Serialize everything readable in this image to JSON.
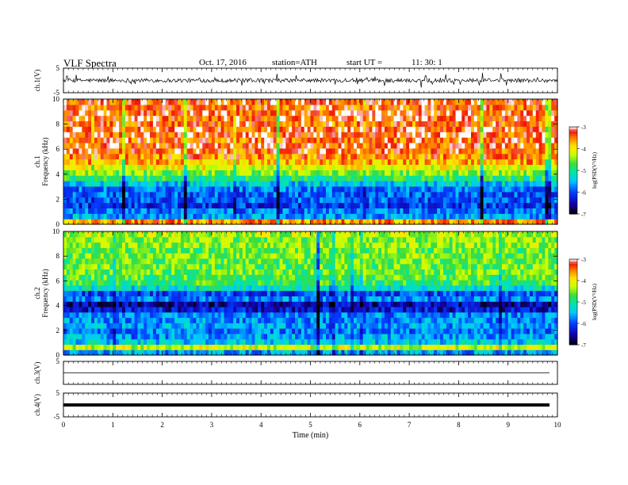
{
  "header": {
    "title": "VLF  Spectra",
    "date": "Oct. 17, 2016",
    "station": "station=ATH",
    "start_label": "start  UT  =",
    "start_time": "11: 30: 1"
  },
  "chart_data": {
    "type": "heatmap",
    "xlabel": "Time  (min)",
    "xlim": [
      0,
      10
    ],
    "xticks": [
      "0",
      "1",
      "2",
      "3",
      "4",
      "5",
      "6",
      "7",
      "8",
      "9",
      "10"
    ],
    "panels": [
      {
        "id": "ch1_waveform",
        "type": "line",
        "ylabel": "ch.1(V)",
        "ylim": [
          -5,
          5
        ],
        "yticks": [
          "5",
          "-5"
        ],
        "level": 0
      },
      {
        "id": "ch1_spectrogram",
        "type": "heatmap",
        "ylabel_top": "ch.1",
        "ylabel": "Frequency (kHz)",
        "ylim": [
          0,
          10
        ],
        "yticks": [
          "0",
          "2",
          "4",
          "6",
          "8",
          "10"
        ],
        "colorbar": {
          "label": "log(PSD(V²/Hz)",
          "range": [
            -7,
            -3
          ],
          "ticks": [
            "-3",
            "-4",
            "-5",
            "-6",
            "-7"
          ]
        },
        "profile": [
          -3.6,
          -5.6,
          -5.8,
          -6.1,
          -5.9,
          -5.9,
          -5.8,
          -5.4,
          -4.9,
          -4.5,
          -4.1,
          -3.7,
          -3.5,
          -3.4,
          -3.3,
          -3.4,
          -3.3,
          -3.3,
          -3.4,
          -3.3,
          -3.3,
          -3.4,
          -3.3
        ]
      },
      {
        "id": "ch2_spectrogram",
        "type": "heatmap",
        "ylabel_top": "ch.2",
        "ylabel": "Frequency (kHz)",
        "ylim": [
          0,
          10
        ],
        "yticks": [
          "0",
          "2",
          "4",
          "6",
          "8",
          "10"
        ],
        "colorbar": {
          "label": "log(PSD(V²/Hz)",
          "range": [
            -7,
            -3
          ],
          "ticks": [
            "-3",
            "-4",
            "-5",
            "-6",
            "-7"
          ]
        },
        "profile": [
          -5.6,
          -4.2,
          -5.4,
          -5.6,
          -5.8,
          -5.6,
          -5.7,
          -5.7,
          -6.3,
          -6.5,
          -5.7,
          -6.0,
          -5.2,
          -4.8,
          -4.7,
          -4.6,
          -4.6,
          -4.6,
          -4.5,
          -4.6,
          -4.4,
          -4.5,
          -4.3
        ]
      },
      {
        "id": "ch3_waveform",
        "type": "line",
        "ylabel": "ch.3(V)",
        "ylim": [
          -5,
          5
        ],
        "yticks": [
          "5"
        ],
        "level": 0
      },
      {
        "id": "ch4_waveform",
        "type": "line",
        "ylabel": "ch.4(V)",
        "ylim": [
          -5,
          5
        ],
        "yticks": [
          "5",
          "-5"
        ],
        "level": 0
      }
    ]
  }
}
